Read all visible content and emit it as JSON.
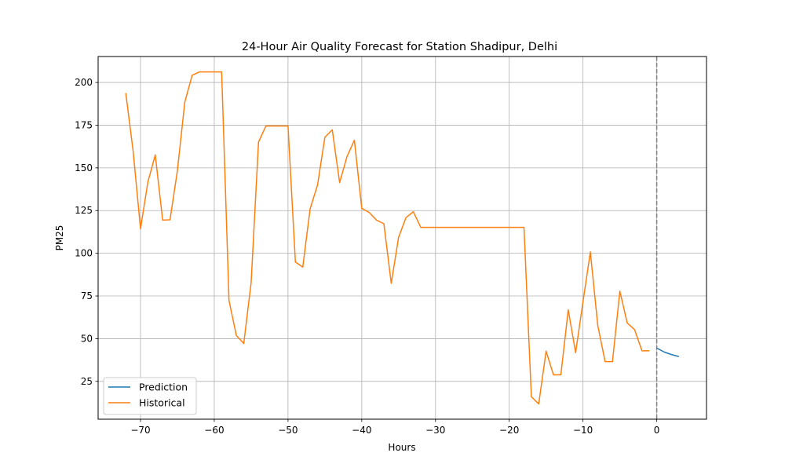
{
  "chart_data": {
    "type": "line",
    "title": "24-Hour Air Quality Forecast for Station Shadipur, Delhi",
    "xlabel": "Hours",
    "ylabel": "PM25",
    "xlim": [
      -75.75,
      6.75
    ],
    "ylim": [
      2.85,
      215.2
    ],
    "xticks": [
      -70,
      -60,
      -50,
      -40,
      -30,
      -20,
      -10,
      0
    ],
    "yticks": [
      25,
      50,
      75,
      100,
      125,
      150,
      175,
      200
    ],
    "grid": true,
    "legend_position": "lower-left",
    "vline": {
      "x": 0,
      "style": "dashed",
      "color": "#7f7f7f"
    },
    "series": [
      {
        "name": "Prediction",
        "color": "#1f77b4",
        "x": [
          0,
          1,
          2,
          3
        ],
        "y": [
          44.5,
          42.2,
          40.7,
          39.5
        ]
      },
      {
        "name": "Historical",
        "color": "#ff7f0e",
        "x": [
          -72,
          -71,
          -70,
          -69,
          -68,
          -67,
          -66,
          -65,
          -64,
          -63,
          -62,
          -61,
          -60,
          -59,
          -58,
          -57,
          -56,
          -55,
          -54,
          -53,
          -52,
          -51,
          -50,
          -49,
          -48,
          -47,
          -46,
          -45,
          -44,
          -43,
          -42,
          -41,
          -40,
          -39,
          -38,
          -37,
          -36,
          -35,
          -34,
          -33,
          -32,
          -31,
          -30,
          -29,
          -28,
          -27,
          -26,
          -25,
          -24,
          -23,
          -22,
          -21,
          -20,
          -19,
          -18,
          -17,
          -16,
          -15,
          -14,
          -13,
          -12,
          -11,
          -10,
          -9,
          -8,
          -7,
          -6,
          -5,
          -4,
          -3,
          -2,
          -1
        ],
        "y": [
          193.8,
          159.7,
          114.3,
          141.8,
          157.6,
          119.4,
          119.6,
          148.4,
          188.4,
          204.2,
          206.2,
          206.2,
          206.2,
          206.2,
          72.3,
          51.8,
          47.2,
          82.8,
          165.1,
          174.5,
          174.5,
          174.5,
          174.5,
          94.9,
          91.9,
          126.1,
          139.9,
          167.9,
          172.3,
          141.4,
          156.6,
          166.2,
          126.3,
          123.9,
          119.4,
          117.3,
          82.4,
          109.4,
          120.9,
          124.3,
          115.2,
          115.2,
          115.2,
          115.2,
          115.2,
          115.2,
          115.2,
          115.2,
          115.2,
          115.2,
          115.2,
          115.2,
          115.2,
          115.2,
          115.2,
          16.0,
          11.8,
          42.7,
          28.8,
          28.8,
          66.9,
          41.8,
          71.6,
          100.8,
          57.9,
          36.6,
          36.6,
          77.8,
          59.2,
          55.3,
          42.9,
          42.9
        ]
      }
    ]
  }
}
